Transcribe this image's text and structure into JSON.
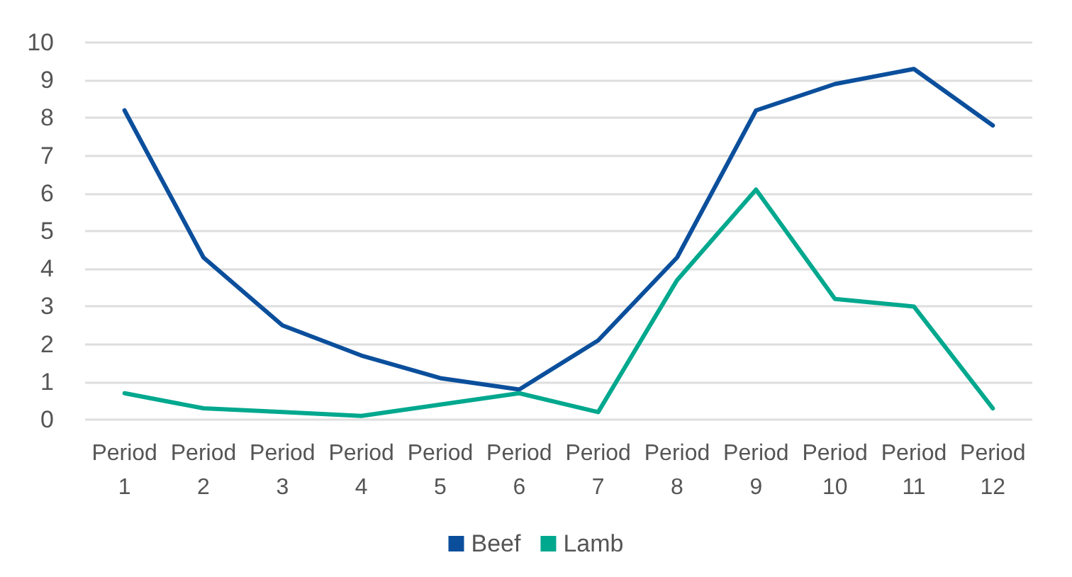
{
  "chart_data": {
    "type": "line",
    "categories": [
      "Period 1",
      "Period 2",
      "Period 3",
      "Period 4",
      "Period 5",
      "Period 6",
      "Period 7",
      "Period 8",
      "Period 9",
      "Period 10",
      "Period 11",
      "Period 12"
    ],
    "series": [
      {
        "name": "Beef",
        "color": "#0b4f9c",
        "values": [
          8.2,
          4.3,
          2.5,
          1.7,
          1.1,
          0.8,
          2.1,
          4.3,
          8.2,
          8.9,
          9.3,
          7.8
        ]
      },
      {
        "name": "Lamb",
        "color": "#00a88e",
        "values": [
          0.7,
          0.3,
          0.2,
          0.1,
          0.4,
          0.7,
          0.2,
          3.7,
          6.1,
          3.2,
          3.0,
          0.3
        ]
      }
    ],
    "ylim": [
      0,
      10
    ],
    "yticks": [
      0,
      1,
      2,
      3,
      4,
      5,
      6,
      7,
      8,
      9,
      10
    ],
    "grid": "y",
    "legend": "bottom",
    "marker": "none",
    "line_style": "solid"
  }
}
